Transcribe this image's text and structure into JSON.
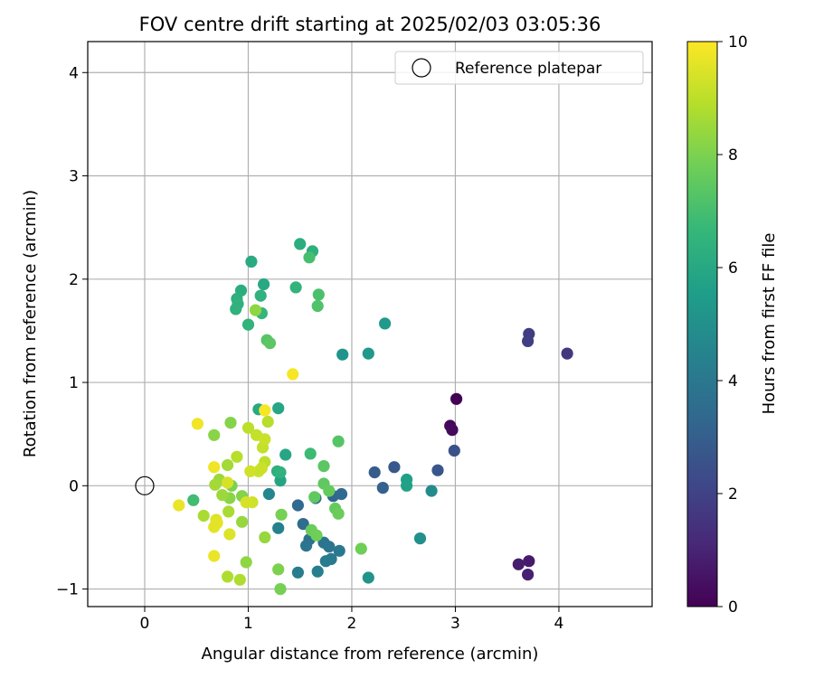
{
  "chart_data": {
    "type": "scatter",
    "title": "FOV centre drift starting at 2025/02/03 03:05:36",
    "xlabel": "Angular distance from reference (arcmin)",
    "ylabel": "Rotation from reference (arcmin)",
    "xlim": [
      -0.55,
      4.9
    ],
    "ylim": [
      -1.17,
      4.3
    ],
    "x_ticks": [
      0,
      1,
      2,
      3,
      4
    ],
    "y_ticks": [
      -1,
      0,
      1,
      2,
      3,
      4
    ],
    "grid": true,
    "legend": {
      "position": "top-right",
      "entries": [
        "Reference platepar"
      ]
    },
    "reference_point": {
      "x": 0,
      "y": 0
    },
    "colorbar": {
      "label": "Hours from first FF file",
      "colormap": "viridis",
      "min": 0,
      "max": 10,
      "ticks": [
        0,
        2,
        4,
        6,
        8,
        10
      ]
    },
    "colormap_stops": [
      "#440154",
      "#482878",
      "#3e4989",
      "#31688e",
      "#26828e",
      "#1f9e89",
      "#35b779",
      "#6ece58",
      "#b5de2b",
      "#fde725"
    ],
    "points": [
      {
        "x": 3.01,
        "y": 0.84,
        "h": 0.0
      },
      {
        "x": 2.95,
        "y": 0.58,
        "h": 0.2
      },
      {
        "x": 2.97,
        "y": 0.54,
        "h": 0.3
      },
      {
        "x": 3.71,
        "y": -0.73,
        "h": 0.7
      },
      {
        "x": 3.61,
        "y": -0.76,
        "h": 0.8
      },
      {
        "x": 3.7,
        "y": -0.86,
        "h": 0.9
      },
      {
        "x": 4.08,
        "y": 1.28,
        "h": 1.6
      },
      {
        "x": 3.71,
        "y": 1.47,
        "h": 1.8
      },
      {
        "x": 3.7,
        "y": 1.4,
        "h": 1.9
      },
      {
        "x": 2.99,
        "y": 0.34,
        "h": 2.5
      },
      {
        "x": 2.83,
        "y": 0.15,
        "h": 2.7
      },
      {
        "x": 2.41,
        "y": 0.18,
        "h": 2.8
      },
      {
        "x": 2.22,
        "y": 0.13,
        "h": 2.9
      },
      {
        "x": 2.3,
        "y": -0.02,
        "h": 3.1
      },
      {
        "x": 1.65,
        "y": -0.12,
        "h": 3.2
      },
      {
        "x": 1.82,
        "y": -0.1,
        "h": 3.3
      },
      {
        "x": 1.9,
        "y": -0.08,
        "h": 3.4
      },
      {
        "x": 1.48,
        "y": -0.19,
        "h": 3.4
      },
      {
        "x": 1.53,
        "y": -0.37,
        "h": 3.5
      },
      {
        "x": 1.63,
        "y": -0.48,
        "h": 3.6
      },
      {
        "x": 1.59,
        "y": -0.52,
        "h": 3.7
      },
      {
        "x": 1.73,
        "y": -0.55,
        "h": 3.8
      },
      {
        "x": 1.56,
        "y": -0.58,
        "h": 3.9
      },
      {
        "x": 1.78,
        "y": -0.59,
        "h": 3.9
      },
      {
        "x": 1.88,
        "y": -0.63,
        "h": 4.0
      },
      {
        "x": 1.8,
        "y": -0.71,
        "h": 4.1
      },
      {
        "x": 1.75,
        "y": -0.73,
        "h": 4.2
      },
      {
        "x": 1.67,
        "y": -0.83,
        "h": 4.3
      },
      {
        "x": 1.48,
        "y": -0.84,
        "h": 4.2
      },
      {
        "x": 1.29,
        "y": -0.41,
        "h": 4.4
      },
      {
        "x": 1.2,
        "y": -0.08,
        "h": 4.6
      },
      {
        "x": 2.77,
        "y": -0.05,
        "h": 4.8
      },
      {
        "x": 2.66,
        "y": -0.51,
        "h": 5.0
      },
      {
        "x": 2.16,
        "y": -0.89,
        "h": 5.1
      },
      {
        "x": 1.91,
        "y": 1.27,
        "h": 5.2
      },
      {
        "x": 2.16,
        "y": 1.28,
        "h": 5.3
      },
      {
        "x": 2.32,
        "y": 1.57,
        "h": 5.4
      },
      {
        "x": 2.53,
        "y": 0.06,
        "h": 5.6
      },
      {
        "x": 2.53,
        "y": 0.0,
        "h": 5.7
      },
      {
        "x": 1.31,
        "y": 0.05,
        "h": 5.8
      },
      {
        "x": 1.36,
        "y": 0.3,
        "h": 5.9
      },
      {
        "x": 1.29,
        "y": 0.75,
        "h": 5.9
      },
      {
        "x": 1.1,
        "y": 0.74,
        "h": 6.0
      },
      {
        "x": 1.15,
        "y": 1.95,
        "h": 6.0
      },
      {
        "x": 1.03,
        "y": 2.17,
        "h": 6.1
      },
      {
        "x": 1.5,
        "y": 2.34,
        "h": 6.2
      },
      {
        "x": 1.62,
        "y": 2.27,
        "h": 6.3
      },
      {
        "x": 0.93,
        "y": 1.89,
        "h": 6.2
      },
      {
        "x": 0.89,
        "y": 1.81,
        "h": 6.3
      },
      {
        "x": 0.9,
        "y": 1.76,
        "h": 6.4
      },
      {
        "x": 0.88,
        "y": 1.71,
        "h": 6.4
      },
      {
        "x": 1.12,
        "y": 1.84,
        "h": 6.4
      },
      {
        "x": 1.46,
        "y": 1.92,
        "h": 6.5
      },
      {
        "x": 1.13,
        "y": 1.67,
        "h": 6.6
      },
      {
        "x": 1.0,
        "y": 1.56,
        "h": 6.5
      },
      {
        "x": 1.31,
        "y": 0.13,
        "h": 6.4
      },
      {
        "x": 1.28,
        "y": 0.14,
        "h": 6.3
      },
      {
        "x": 1.6,
        "y": 0.31,
        "h": 6.8
      },
      {
        "x": 0.47,
        "y": -0.14,
        "h": 6.9
      },
      {
        "x": 1.59,
        "y": 2.21,
        "h": 7.0
      },
      {
        "x": 1.68,
        "y": 1.85,
        "h": 7.1
      },
      {
        "x": 1.67,
        "y": 1.74,
        "h": 7.2
      },
      {
        "x": 1.18,
        "y": 1.41,
        "h": 7.3
      },
      {
        "x": 1.21,
        "y": 1.38,
        "h": 7.4
      },
      {
        "x": 1.87,
        "y": 0.43,
        "h": 7.3
      },
      {
        "x": 1.73,
        "y": 0.19,
        "h": 7.4
      },
      {
        "x": 1.73,
        "y": 0.02,
        "h": 7.5
      },
      {
        "x": 1.78,
        "y": -0.05,
        "h": 7.6
      },
      {
        "x": 1.64,
        "y": -0.11,
        "h": 7.5
      },
      {
        "x": 1.84,
        "y": -0.22,
        "h": 7.6
      },
      {
        "x": 1.87,
        "y": -0.27,
        "h": 7.7
      },
      {
        "x": 1.61,
        "y": -0.43,
        "h": 7.7
      },
      {
        "x": 1.66,
        "y": -0.48,
        "h": 7.8
      },
      {
        "x": 2.09,
        "y": -0.61,
        "h": 7.8
      },
      {
        "x": 1.32,
        "y": -0.28,
        "h": 7.9
      },
      {
        "x": 1.31,
        "y": -1.0,
        "h": 7.9
      },
      {
        "x": 1.29,
        "y": -0.81,
        "h": 8.0
      },
      {
        "x": 0.84,
        "y": 0.0,
        "h": 8.0
      },
      {
        "x": 0.94,
        "y": -0.1,
        "h": 8.1
      },
      {
        "x": 0.82,
        "y": -0.12,
        "h": 8.2
      },
      {
        "x": 0.67,
        "y": 0.49,
        "h": 8.2
      },
      {
        "x": 0.83,
        "y": 0.61,
        "h": 8.1
      },
      {
        "x": 1.07,
        "y": 1.7,
        "h": 8.3
      },
      {
        "x": 0.98,
        "y": -0.74,
        "h": 8.3
      },
      {
        "x": 0.94,
        "y": -0.35,
        "h": 8.4
      },
      {
        "x": 1.16,
        "y": -0.5,
        "h": 8.4
      },
      {
        "x": 0.72,
        "y": 0.06,
        "h": 8.5
      },
      {
        "x": 0.75,
        "y": -0.09,
        "h": 8.5
      },
      {
        "x": 0.68,
        "y": 0.01,
        "h": 8.6
      },
      {
        "x": 0.8,
        "y": 0.2,
        "h": 8.6
      },
      {
        "x": 0.57,
        "y": -0.29,
        "h": 8.7
      },
      {
        "x": 0.81,
        "y": -0.25,
        "h": 8.7
      },
      {
        "x": 0.92,
        "y": -0.91,
        "h": 8.8
      },
      {
        "x": 0.8,
        "y": -0.88,
        "h": 8.8
      },
      {
        "x": 0.89,
        "y": 0.28,
        "h": 8.9
      },
      {
        "x": 1.19,
        "y": 0.62,
        "h": 8.9
      },
      {
        "x": 1.0,
        "y": 0.56,
        "h": 9.0
      },
      {
        "x": 1.16,
        "y": 0.23,
        "h": 9.0
      },
      {
        "x": 1.14,
        "y": 0.37,
        "h": 9.1
      },
      {
        "x": 1.08,
        "y": 0.49,
        "h": 9.1
      },
      {
        "x": 1.16,
        "y": 0.45,
        "h": 9.2
      },
      {
        "x": 1.1,
        "y": 0.14,
        "h": 9.2
      },
      {
        "x": 1.13,
        "y": 0.17,
        "h": 9.2
      },
      {
        "x": 1.02,
        "y": 0.14,
        "h": 9.3
      },
      {
        "x": 1.04,
        "y": -0.16,
        "h": 9.3
      },
      {
        "x": 0.98,
        "y": -0.16,
        "h": 9.4
      },
      {
        "x": 0.8,
        "y": 0.03,
        "h": 9.4
      },
      {
        "x": 0.82,
        "y": -0.47,
        "h": 9.5
      },
      {
        "x": 0.69,
        "y": -0.33,
        "h": 9.5
      },
      {
        "x": 0.7,
        "y": -0.36,
        "h": 9.6
      },
      {
        "x": 0.67,
        "y": -0.4,
        "h": 9.6
      },
      {
        "x": 0.67,
        "y": -0.68,
        "h": 9.7
      },
      {
        "x": 0.33,
        "y": -0.19,
        "h": 9.7
      },
      {
        "x": 0.67,
        "y": 0.18,
        "h": 9.8
      },
      {
        "x": 0.51,
        "y": 0.6,
        "h": 9.8
      },
      {
        "x": 1.16,
        "y": 0.73,
        "h": 9.9
      },
      {
        "x": 1.43,
        "y": 1.08,
        "h": 9.9
      }
    ]
  }
}
